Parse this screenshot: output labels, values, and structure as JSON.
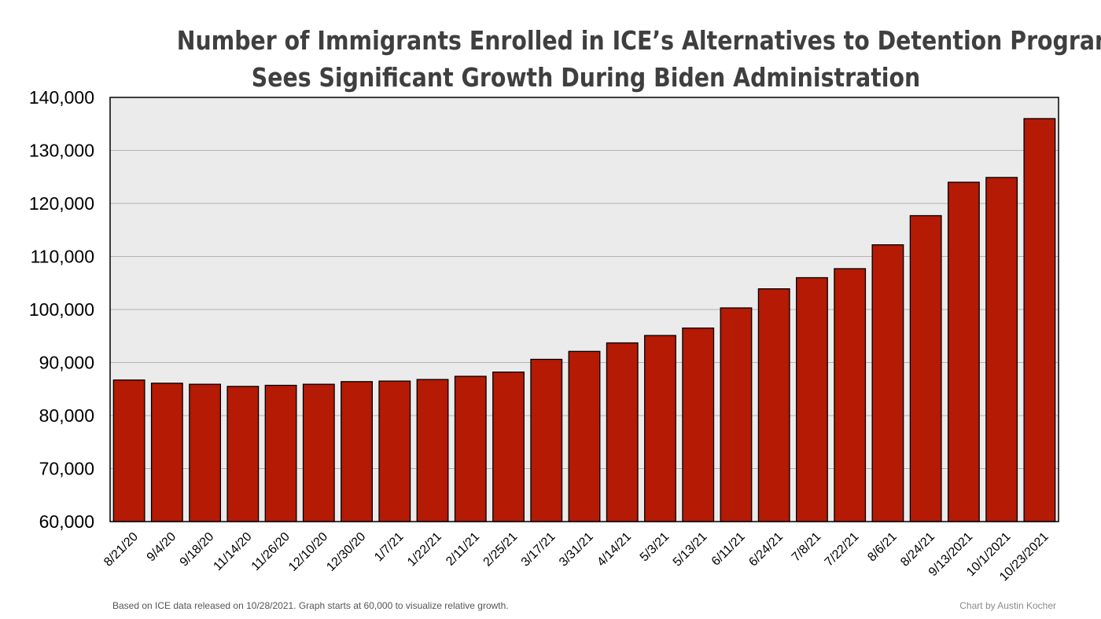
{
  "chart_data": {
    "type": "bar",
    "title_line1": "Number of Immigrants Enrolled in ICE’s Alternatives to Detention Programs",
    "title_line2": "Sees Significant Growth During Biden Administration",
    "xlabel": "",
    "ylabel": "",
    "ylim": [
      60000,
      140000
    ],
    "yticks": [
      "60,000",
      "70,000",
      "80,000",
      "90,000",
      "100,000",
      "110,000",
      "120,000",
      "130,000",
      "140,000"
    ],
    "grid": true,
    "categories": [
      "8/21/20",
      "9/4/20",
      "9/18/20",
      "11/14/20",
      "11/26/20",
      "12/10/20",
      "12/30/20",
      "1/7/21",
      "1/22/21",
      "2/11/21",
      "2/25/21",
      "3/17/21",
      "3/31/21",
      "4/14/21",
      "5/3/21",
      "5/13/21",
      "6/11/21",
      "6/24/21",
      "7/8/21",
      "7/22/21",
      "8/6/21",
      "8/24/21",
      "9/13/2021",
      "10/1/2021",
      "10/23/2021"
    ],
    "values": [
      86700,
      86100,
      85900,
      85500,
      85700,
      85900,
      86400,
      86500,
      86800,
      87400,
      88200,
      90600,
      92100,
      93700,
      95100,
      96500,
      100300,
      103900,
      106000,
      107700,
      112200,
      117700,
      124000,
      124900,
      136000
    ],
    "bar_color": "#b41a04",
    "plot_bg": "#ebebeb",
    "grid_color": "#b3b3b3"
  },
  "footnote": "Based on ICE data released on 10/28/2021. Graph starts at 60,000 to visualize relative growth.",
  "credit": "Chart by Austin Kocher"
}
